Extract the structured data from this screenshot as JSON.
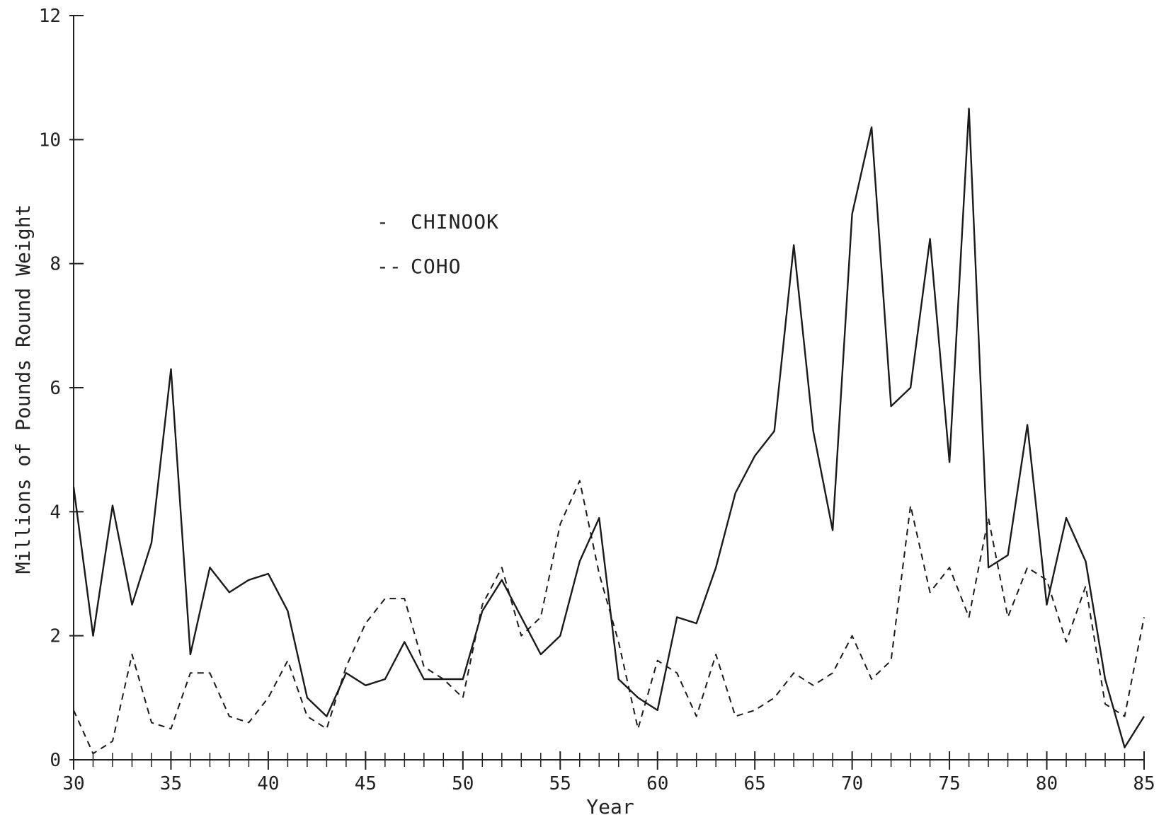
{
  "chart_data": {
    "type": "line",
    "title": "",
    "xlabel": "Year",
    "ylabel": "Millions of Pounds Round Weight",
    "xlim": [
      30,
      85
    ],
    "ylim": [
      0,
      12
    ],
    "x_ticks": [
      30,
      35,
      40,
      45,
      50,
      55,
      60,
      65,
      70,
      75,
      80,
      85
    ],
    "x_tick_labels": [
      "30",
      "35",
      "40",
      "45",
      "50",
      "55",
      "60",
      "65",
      "70",
      "75",
      "80",
      "85"
    ],
    "y_ticks": [
      0,
      2,
      4,
      6,
      8,
      10,
      12
    ],
    "y_tick_labels": [
      "0",
      "2",
      "4",
      "6",
      "8",
      "10",
      "12"
    ],
    "grid": false,
    "legend_position": "upper-center",
    "x": [
      30,
      31,
      32,
      33,
      34,
      35,
      36,
      37,
      38,
      39,
      40,
      41,
      42,
      43,
      44,
      45,
      46,
      47,
      48,
      49,
      50,
      51,
      52,
      53,
      54,
      55,
      56,
      57,
      58,
      59,
      60,
      61,
      62,
      63,
      64,
      65,
      66,
      67,
      68,
      69,
      70,
      71,
      72,
      73,
      74,
      75,
      76,
      77,
      78,
      79,
      80,
      81,
      82,
      83,
      84,
      85
    ],
    "series": [
      {
        "name": "CHINOOK",
        "style": "solid",
        "legend_marker": "-",
        "values": [
          4.4,
          2.0,
          4.1,
          2.5,
          3.5,
          6.3,
          1.7,
          3.1,
          2.7,
          2.9,
          3.0,
          2.4,
          1.0,
          0.7,
          1.4,
          1.2,
          1.3,
          1.9,
          1.3,
          1.3,
          1.3,
          2.4,
          2.9,
          2.3,
          1.7,
          2.0,
          3.2,
          3.9,
          1.3,
          1.0,
          0.8,
          2.3,
          2.2,
          3.1,
          4.3,
          4.9,
          5.3,
          8.3,
          5.3,
          3.7,
          8.8,
          10.2,
          5.7,
          6.0,
          8.4,
          4.8,
          10.5,
          3.1,
          3.3,
          5.4,
          2.5,
          3.9,
          3.2,
          1.3,
          0.2,
          0.7
        ]
      },
      {
        "name": "COHO",
        "style": "dashed",
        "legend_marker": "--",
        "values": [
          0.8,
          0.1,
          0.3,
          1.7,
          0.6,
          0.5,
          1.4,
          1.4,
          0.7,
          0.6,
          1.0,
          1.6,
          0.7,
          0.5,
          1.5,
          2.2,
          2.6,
          2.6,
          1.5,
          1.3,
          1.0,
          2.5,
          3.1,
          2.0,
          2.3,
          3.8,
          4.5,
          3.0,
          1.9,
          0.5,
          1.6,
          1.4,
          0.7,
          1.7,
          0.7,
          0.8,
          1.0,
          1.4,
          1.2,
          1.4,
          2.0,
          1.3,
          1.6,
          4.1,
          2.7,
          3.1,
          2.3,
          3.9,
          2.3,
          3.1,
          2.9,
          1.9,
          2.8,
          0.9,
          0.7,
          2.3
        ]
      }
    ]
  }
}
